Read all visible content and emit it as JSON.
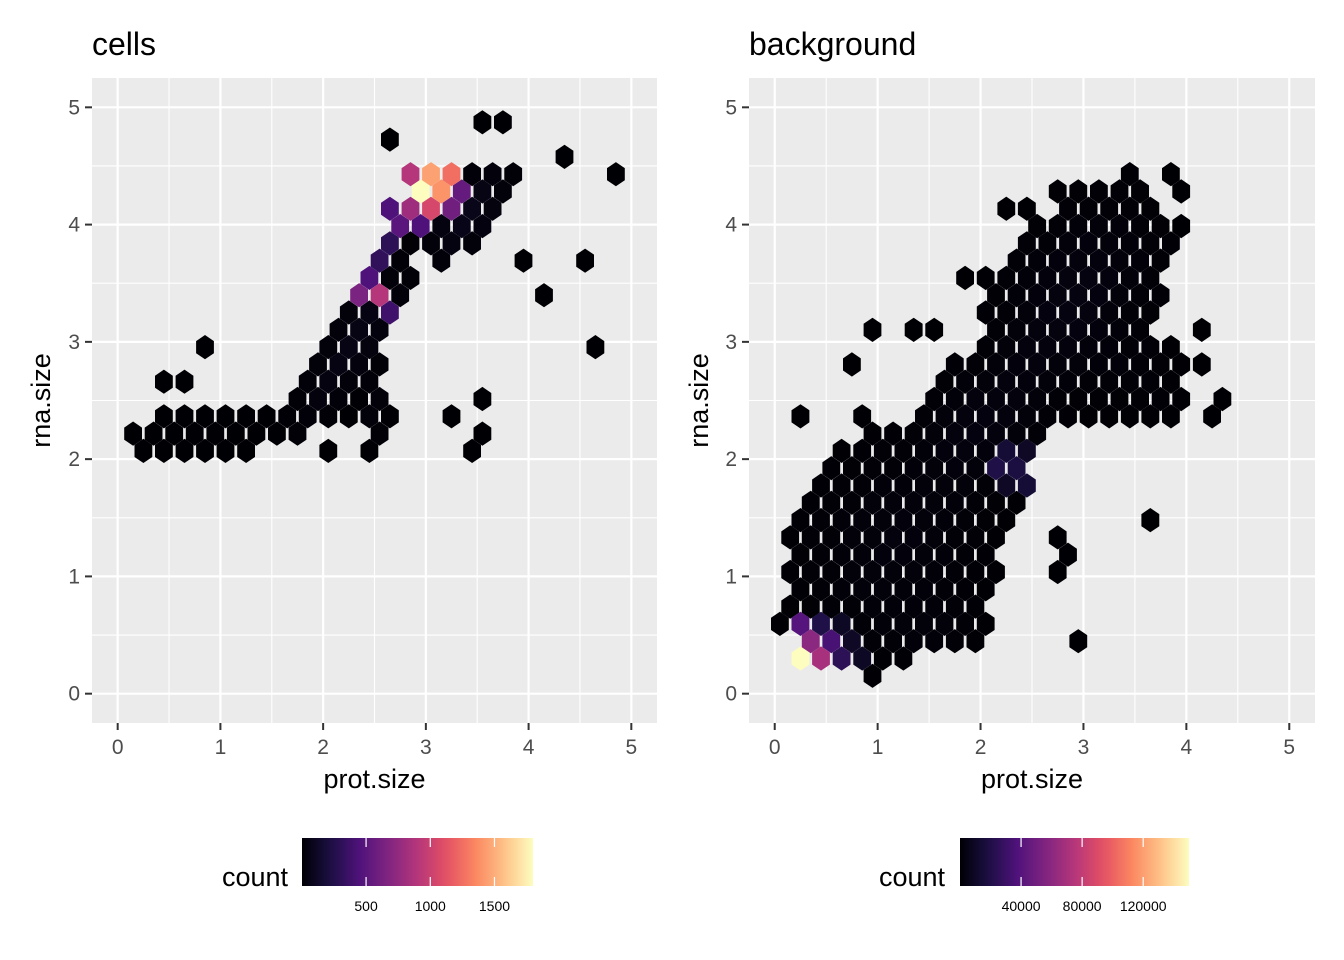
{
  "colors": {
    "panel_bg": "#ebebeb",
    "grid": "#ffffff",
    "tick_text": "#4d4d4d",
    "tick_mark": "#333333",
    "colormap_magma": [
      "#000004",
      "#1c1044",
      "#4f127b",
      "#812581",
      "#b5367a",
      "#e55064",
      "#fb8761",
      "#fec287",
      "#fcfdbf"
    ]
  },
  "chart_data": [
    {
      "type": "hexbin",
      "title": "cells",
      "xlabel": "prot.size",
      "ylabel": "rna.size",
      "xlim": [
        -0.25,
        5.25
      ],
      "ylim": [
        -0.25,
        5.25
      ],
      "xticks": [
        0,
        1,
        2,
        3,
        4,
        5
      ],
      "yticks": [
        0,
        1,
        2,
        3,
        4,
        5
      ],
      "grid": true,
      "legend": {
        "title": "count",
        "position": "bottom",
        "min": 1,
        "max": 1800,
        "ticks": [
          500,
          1000,
          1500
        ]
      },
      "hex_radius": 0.1,
      "regions": [
        {
          "center": [
            0.9,
            2.2
          ],
          "sx": 0.55,
          "sy": 0.2,
          "rho": 0.0,
          "w": 0.28,
          "peak": 8
        },
        {
          "center": [
            2.3,
            3.0
          ],
          "sx": 0.5,
          "sy": 0.65,
          "rho": 0.85,
          "w": 0.95,
          "peak": 60
        },
        {
          "center": [
            3.4,
            4.1
          ],
          "sx": 0.35,
          "sy": 0.35,
          "rho": 0.6,
          "w": 0.9,
          "peak": 90
        },
        {
          "center": [
            2.5,
            2.5
          ],
          "sx": 0.12,
          "sy": 0.35,
          "rho": 0.0,
          "w": 0.75,
          "peak": 40
        }
      ],
      "peaks": [
        {
          "x": 3.0,
          "y": 4.3,
          "count": 1800
        },
        {
          "x": 3.1,
          "y": 4.45,
          "count": 1450
        },
        {
          "x": 3.15,
          "y": 4.3,
          "count": 1400
        },
        {
          "x": 3.25,
          "y": 4.4,
          "count": 1250
        },
        {
          "x": 2.9,
          "y": 4.2,
          "count": 800
        },
        {
          "x": 3.1,
          "y": 4.15,
          "count": 1050
        },
        {
          "x": 2.9,
          "y": 4.45,
          "count": 900
        },
        {
          "x": 2.8,
          "y": 4.05,
          "count": 500
        },
        {
          "x": 3.2,
          "y": 4.1,
          "count": 600
        },
        {
          "x": 3.35,
          "y": 4.3,
          "count": 550
        },
        {
          "x": 2.7,
          "y": 4.2,
          "count": 450
        },
        {
          "x": 3.0,
          "y": 4.05,
          "count": 450
        },
        {
          "x": 2.5,
          "y": 3.45,
          "count": 900
        },
        {
          "x": 2.4,
          "y": 3.35,
          "count": 650
        },
        {
          "x": 2.45,
          "y": 3.6,
          "count": 550
        },
        {
          "x": 2.35,
          "y": 3.5,
          "count": 450
        },
        {
          "x": 2.55,
          "y": 3.3,
          "count": 380
        },
        {
          "x": 2.6,
          "y": 3.75,
          "count": 320
        },
        {
          "x": 2.7,
          "y": 3.9,
          "count": 300
        }
      ],
      "outliers": [
        {
          "x": 4.75,
          "y": 4.45,
          "count": 1
        },
        {
          "x": 4.5,
          "y": 3.75,
          "count": 1
        },
        {
          "x": 4.2,
          "y": 3.45,
          "count": 1
        },
        {
          "x": 4.6,
          "y": 3.0,
          "count": 1
        },
        {
          "x": 0.9,
          "y": 3.0,
          "count": 1
        },
        {
          "x": 0.75,
          "y": 2.7,
          "count": 1
        },
        {
          "x": 0.5,
          "y": 2.6,
          "count": 1
        },
        {
          "x": 3.3,
          "y": 2.3,
          "count": 1
        },
        {
          "x": 3.6,
          "y": 2.15,
          "count": 1
        },
        {
          "x": 3.35,
          "y": 2.0,
          "count": 1
        },
        {
          "x": 3.6,
          "y": 2.45,
          "count": 1
        },
        {
          "x": 2.1,
          "y": 2.0,
          "count": 1
        },
        {
          "x": 2.2,
          "y": 2.3,
          "count": 1
        },
        {
          "x": 4.25,
          "y": 4.65,
          "count": 1
        },
        {
          "x": 4.35,
          "y": 4.55,
          "count": 1
        },
        {
          "x": 3.6,
          "y": 4.85,
          "count": 1
        },
        {
          "x": 3.75,
          "y": 4.85,
          "count": 1
        },
        {
          "x": 3.95,
          "y": 3.75,
          "count": 1
        },
        {
          "x": 2.6,
          "y": 4.7,
          "count": 1
        }
      ]
    },
    {
      "type": "hexbin",
      "title": "background",
      "xlabel": "prot.size",
      "ylabel": "rna.size",
      "xlim": [
        -0.25,
        5.25
      ],
      "ylim": [
        -0.25,
        5.25
      ],
      "xticks": [
        0,
        1,
        2,
        3,
        4,
        5
      ],
      "yticks": [
        0,
        1,
        2,
        3,
        4,
        5
      ],
      "grid": true,
      "legend": {
        "title": "count",
        "position": "bottom",
        "min": 1,
        "max": 150000,
        "ticks": [
          40000,
          80000,
          120000
        ]
      },
      "hex_radius": 0.1,
      "regions": [
        {
          "center": [
            1.15,
            1.3
          ],
          "sx": 0.85,
          "sy": 0.85,
          "rho": 0.25,
          "w": 0.95,
          "peak": 2500
        },
        {
          "center": [
            2.9,
            3.35
          ],
          "sx": 0.75,
          "sy": 0.85,
          "rho": 0.45,
          "w": 0.95,
          "peak": 3500
        },
        {
          "center": [
            2.0,
            2.3
          ],
          "sx": 0.55,
          "sy": 0.55,
          "rho": 0.3,
          "w": 0.85,
          "peak": 3000
        },
        {
          "center": [
            3.5,
            2.7
          ],
          "sx": 0.4,
          "sy": 0.35,
          "rho": 0.0,
          "w": 0.7,
          "peak": 1500
        },
        {
          "center": [
            1.5,
            0.55
          ],
          "sx": 0.5,
          "sy": 0.2,
          "rho": 0.0,
          "w": 0.75,
          "peak": 2000
        }
      ],
      "peaks": [
        {
          "x": 0.25,
          "y": 0.3,
          "count": 150000
        },
        {
          "x": 0.4,
          "y": 0.3,
          "count": 70000
        },
        {
          "x": 0.35,
          "y": 0.45,
          "count": 60000
        },
        {
          "x": 0.25,
          "y": 0.6,
          "count": 40000
        },
        {
          "x": 0.5,
          "y": 0.45,
          "count": 35000
        },
        {
          "x": 0.6,
          "y": 0.3,
          "count": 30000
        },
        {
          "x": 0.4,
          "y": 0.6,
          "count": 20000
        },
        {
          "x": 0.7,
          "y": 0.45,
          "count": 18000
        },
        {
          "x": 0.75,
          "y": 0.3,
          "count": 25000
        },
        {
          "x": 0.55,
          "y": 0.6,
          "count": 15000
        },
        {
          "x": 0.85,
          "y": 0.45,
          "count": 10000
        },
        {
          "x": 0.9,
          "y": 0.3,
          "count": 9000
        },
        {
          "x": 0.7,
          "y": 0.6,
          "count": 9000
        },
        {
          "x": 2.3,
          "y": 1.9,
          "count": 70000
        },
        {
          "x": 2.2,
          "y": 1.9,
          "count": 20000
        },
        {
          "x": 2.4,
          "y": 1.9,
          "count": 18000
        },
        {
          "x": 2.25,
          "y": 2.05,
          "count": 15000
        },
        {
          "x": 2.35,
          "y": 1.75,
          "count": 15000
        },
        {
          "x": 2.25,
          "y": 1.75,
          "count": 10000
        },
        {
          "x": 2.35,
          "y": 2.05,
          "count": 10000
        }
      ],
      "outliers": [
        {
          "x": 3.55,
          "y": 1.45,
          "count": 1
        },
        {
          "x": 2.85,
          "y": 0.45,
          "count": 1
        },
        {
          "x": 2.65,
          "y": 1.3,
          "count": 1
        },
        {
          "x": 2.8,
          "y": 1.3,
          "count": 1
        },
        {
          "x": 2.9,
          "y": 1.15,
          "count": 1
        },
        {
          "x": 2.7,
          "y": 1.0,
          "count": 1
        },
        {
          "x": 1.75,
          "y": 3.5,
          "count": 1
        },
        {
          "x": 0.65,
          "y": 2.75,
          "count": 1
        },
        {
          "x": 0.25,
          "y": 2.35,
          "count": 1
        },
        {
          "x": 2.15,
          "y": 4.2,
          "count": 1
        },
        {
          "x": 2.35,
          "y": 4.2,
          "count": 1
        },
        {
          "x": 3.9,
          "y": 4.05,
          "count": 1
        },
        {
          "x": 3.85,
          "y": 4.45,
          "count": 1
        },
        {
          "x": 3.95,
          "y": 4.35,
          "count": 1
        },
        {
          "x": 4.2,
          "y": 3.05,
          "count": 1
        },
        {
          "x": 4.1,
          "y": 2.85,
          "count": 1
        },
        {
          "x": 4.3,
          "y": 2.35,
          "count": 1
        },
        {
          "x": 4.35,
          "y": 2.5,
          "count": 1
        },
        {
          "x": 1.0,
          "y": 3.05,
          "count": 1
        },
        {
          "x": 1.3,
          "y": 3.05,
          "count": 1
        },
        {
          "x": 1.6,
          "y": 3.05,
          "count": 1
        }
      ]
    }
  ]
}
